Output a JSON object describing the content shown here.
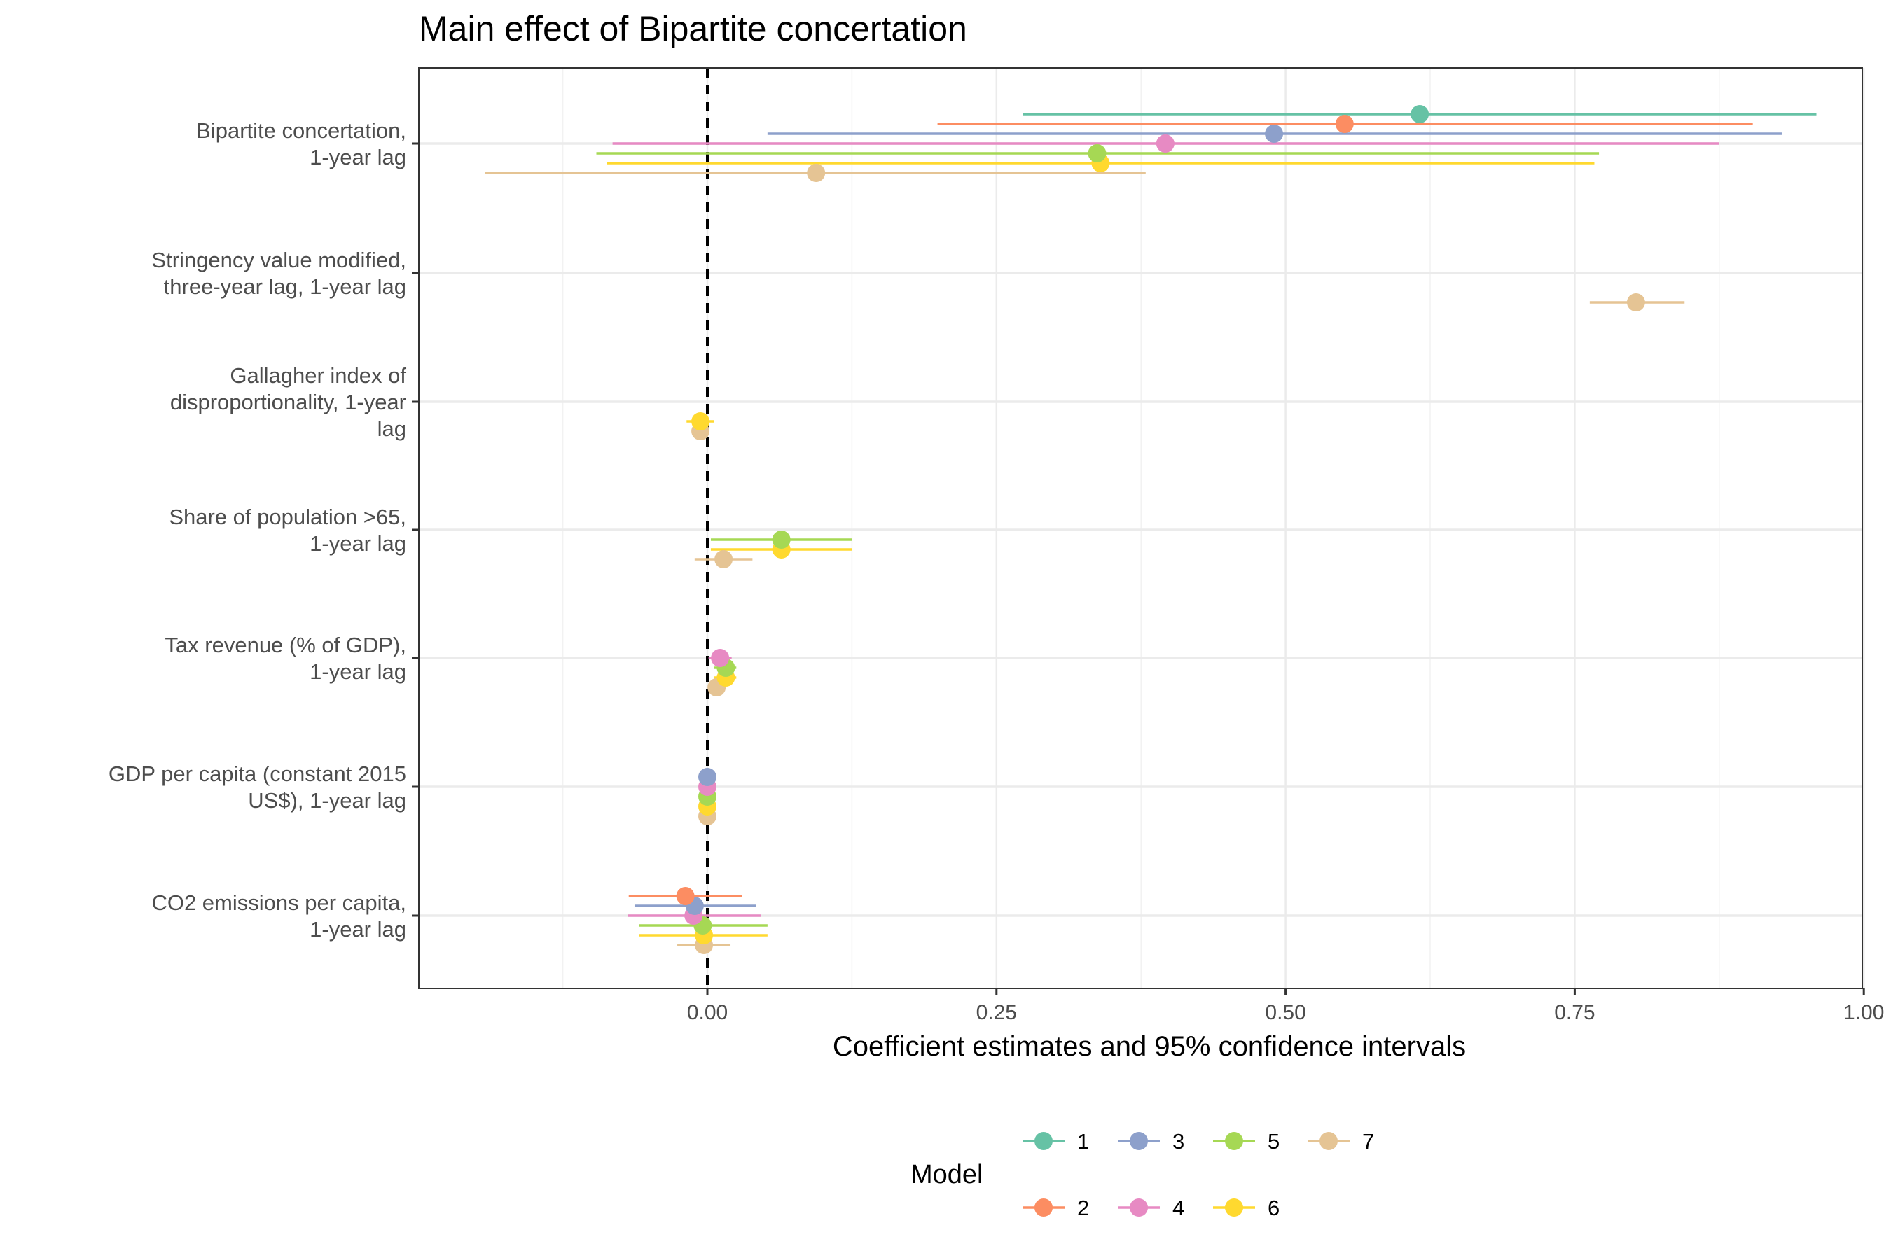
{
  "chart_data": {
    "type": "scatter",
    "subtype": "coefficient-plot",
    "title": "Main effect of Bipartite concertation",
    "xlabel": "Coefficient estimates and 95% confidence intervals",
    "ylabel": "",
    "xlim": [
      -0.25,
      1.02
    ],
    "xticks": [
      0.0,
      0.25,
      0.5,
      0.75,
      1.0
    ],
    "xtick_labels": [
      "0.00",
      "0.25",
      "0.50",
      "0.75",
      "1.00"
    ],
    "reference_line": 0,
    "grid": true,
    "legend_position": "bottom",
    "legend_title": "Model",
    "categories": [
      [
        "Bipartite concertation,",
        "1-year lag"
      ],
      [
        "Stringency value modified,",
        "three-year lag, 1-year lag"
      ],
      [
        "Gallagher index of",
        "disproportionality, 1-year",
        "lag"
      ],
      [
        "Share of population >65,",
        "1-year lag"
      ],
      [
        "Tax revenue (% of GDP),",
        "1-year lag"
      ],
      [
        "GDP per capita (constant 2015",
        "US$), 1-year lag"
      ],
      [
        "CO2 emissions per capita,",
        "1-year lag"
      ]
    ],
    "models": [
      {
        "name": "1",
        "color": "#66C2A5"
      },
      {
        "name": "2",
        "color": "#FC8D62"
      },
      {
        "name": "3",
        "color": "#8DA0CB"
      },
      {
        "name": "4",
        "color": "#E78AC3"
      },
      {
        "name": "5",
        "color": "#A6D854"
      },
      {
        "name": "6",
        "color": "#FFD92F"
      },
      {
        "name": "7",
        "color": "#E5C494"
      }
    ],
    "estimates": [
      {
        "term": 0,
        "model": "7",
        "est": 0.094,
        "lo": -0.192,
        "hi": 0.379
      },
      {
        "term": 0,
        "model": "6",
        "est": 0.34,
        "lo": -0.087,
        "hi": 0.767
      },
      {
        "term": 0,
        "model": "5",
        "est": 0.337,
        "lo": -0.096,
        "hi": 0.771
      },
      {
        "term": 0,
        "model": "4",
        "est": 0.396,
        "lo": -0.082,
        "hi": 0.875
      },
      {
        "term": 0,
        "model": "3",
        "est": 0.49,
        "lo": 0.052,
        "hi": 0.929
      },
      {
        "term": 0,
        "model": "2",
        "est": 0.551,
        "lo": 0.199,
        "hi": 0.904
      },
      {
        "term": 0,
        "model": "1",
        "est": 0.616,
        "lo": 0.273,
        "hi": 0.959
      },
      {
        "term": 1,
        "model": "7",
        "est": 0.803,
        "lo": 0.763,
        "hi": 0.845
      },
      {
        "term": 2,
        "model": "7",
        "est": -0.006,
        "lo": -0.01,
        "hi": -0.002
      },
      {
        "term": 2,
        "model": "6",
        "est": -0.006,
        "lo": -0.018,
        "hi": 0.006
      },
      {
        "term": 3,
        "model": "7",
        "est": 0.014,
        "lo": -0.011,
        "hi": 0.039
      },
      {
        "term": 3,
        "model": "6",
        "est": 0.064,
        "lo": 0.003,
        "hi": 0.125
      },
      {
        "term": 3,
        "model": "5",
        "est": 0.064,
        "lo": 0.003,
        "hi": 0.125
      },
      {
        "term": 4,
        "model": "7",
        "est": 0.008,
        "lo": 0.006,
        "hi": 0.01
      },
      {
        "term": 4,
        "model": "6",
        "est": 0.016,
        "lo": 0.006,
        "hi": 0.025
      },
      {
        "term": 4,
        "model": "5",
        "est": 0.016,
        "lo": 0.006,
        "hi": 0.025
      },
      {
        "term": 4,
        "model": "4",
        "est": 0.011,
        "lo": 0.001,
        "hi": 0.021
      },
      {
        "term": 5,
        "model": "7",
        "est": 0.0,
        "lo": -0.001,
        "hi": 0.001
      },
      {
        "term": 5,
        "model": "6",
        "est": 0.0,
        "lo": -0.001,
        "hi": 0.001
      },
      {
        "term": 5,
        "model": "5",
        "est": 0.0,
        "lo": -0.001,
        "hi": 0.001
      },
      {
        "term": 5,
        "model": "4",
        "est": 0.0,
        "lo": -0.001,
        "hi": 0.001
      },
      {
        "term": 5,
        "model": "3",
        "est": 0.0,
        "lo": -0.001,
        "hi": 0.001
      },
      {
        "term": 6,
        "model": "7",
        "est": -0.003,
        "lo": -0.026,
        "hi": 0.02
      },
      {
        "term": 6,
        "model": "6",
        "est": -0.003,
        "lo": -0.059,
        "hi": 0.052
      },
      {
        "term": 6,
        "model": "5",
        "est": -0.004,
        "lo": -0.059,
        "hi": 0.052
      },
      {
        "term": 6,
        "model": "4",
        "est": -0.012,
        "lo": -0.069,
        "hi": 0.046
      },
      {
        "term": 6,
        "model": "3",
        "est": -0.011,
        "lo": -0.063,
        "hi": 0.042
      },
      {
        "term": 6,
        "model": "2",
        "est": -0.019,
        "lo": -0.068,
        "hi": 0.03
      }
    ]
  }
}
